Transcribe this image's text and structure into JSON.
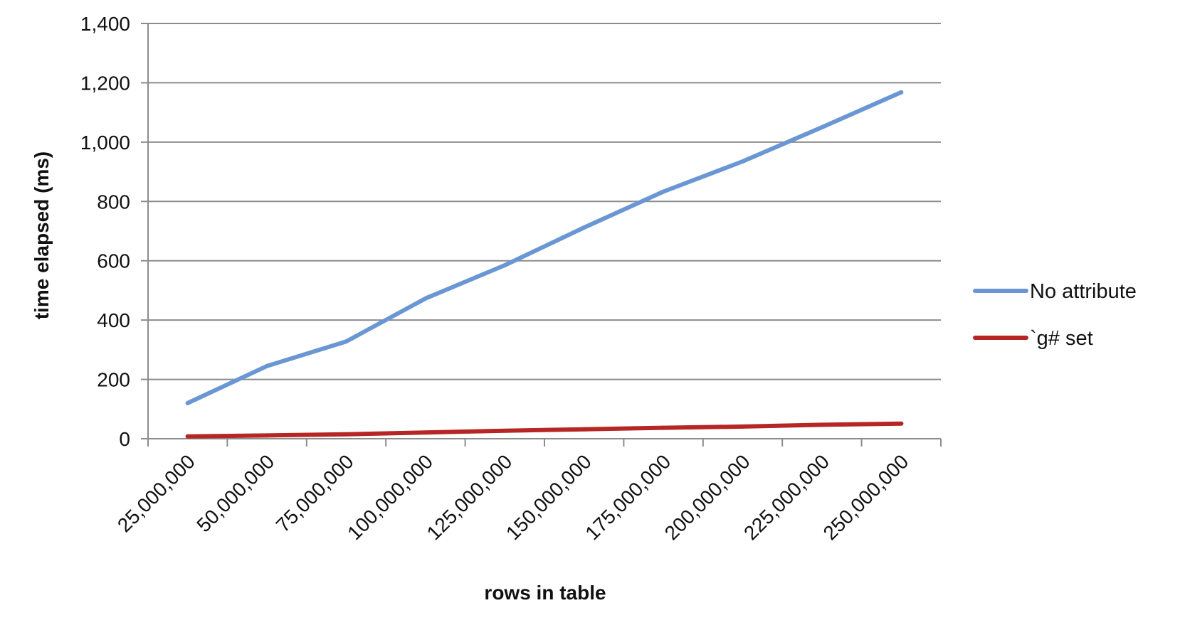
{
  "chart_data": {
    "type": "line",
    "title": "",
    "xlabel": "rows in table",
    "ylabel": "time elapsed (ms)",
    "categories": [
      "25,000,000",
      "50,000,000",
      "75,000,000",
      "100,000,000",
      "125,000,000",
      "150,000,000",
      "175,000,000",
      "200,000,000",
      "225,000,000",
      "250,000,000"
    ],
    "ylim": [
      0,
      1400
    ],
    "yticks": [
      0,
      200,
      400,
      600,
      800,
      1000,
      1200,
      1400
    ],
    "ytick_labels": [
      "0",
      "200",
      "400",
      "600",
      "800",
      "1,000",
      "1,200",
      "1,400"
    ],
    "grid": true,
    "legend_position": "right",
    "series": [
      {
        "name": "No attribute",
        "color": "#6A97D4",
        "values": [
          120,
          245,
          328,
          473,
          585,
          712,
          833,
          935,
          1050,
          1168
        ]
      },
      {
        "name": "`g# set",
        "color": "#B62625",
        "values": [
          8,
          11,
          15,
          21,
          27,
          32,
          37,
          41,
          47,
          51
        ]
      }
    ]
  }
}
